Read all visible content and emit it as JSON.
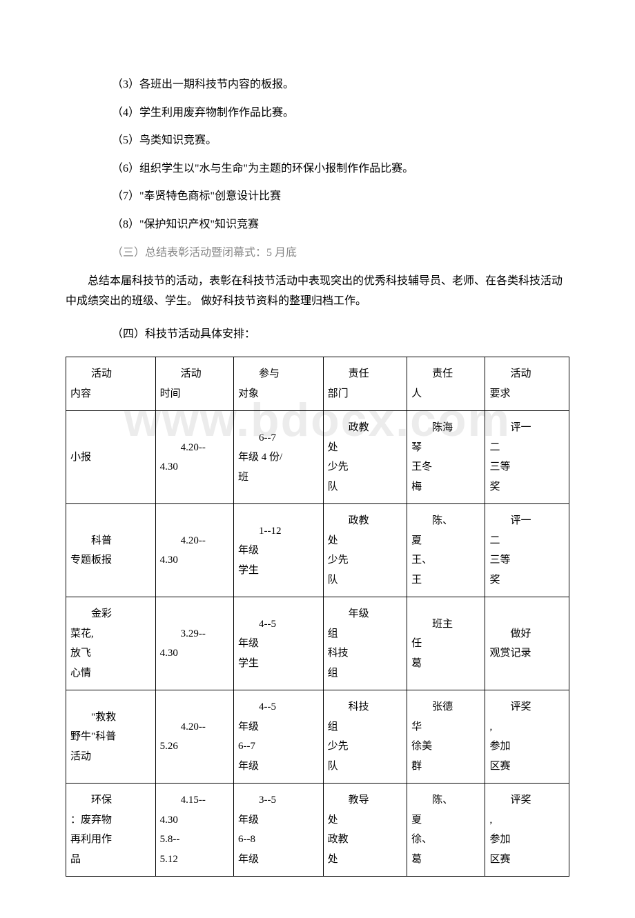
{
  "watermark": "www.bdocx.com",
  "list_items": [
    {
      "text": "（3）各班出一期科技节内容的板报。",
      "gray": false
    },
    {
      "text": "（4）学生利用废弃物制作作品比赛。",
      "gray": false
    },
    {
      "text": "（5）鸟类知识竞赛。",
      "gray": false
    },
    {
      "text": "（6）组织学生以\"水与生命\"为主题的环保小报制作作品比赛。",
      "gray": false
    },
    {
      "text": "（7）\"奉贤特色商标\"创意设计比赛",
      "gray": false
    },
    {
      "text": "（8）\"保护知识产权\"知识竞赛",
      "gray": false
    },
    {
      "text": "（三）总结表彰活动暨闭幕式：5 月底",
      "gray": true
    }
  ],
  "summary": "总结本届科技节的活动，表彰在科技节活动中表现突出的优秀科技辅导员、老师、在各类科技活动中成绩突出的班级、学生。 做好科技节资料的整理归档工作。",
  "section_heading": "（四）科技节活动具体安排：",
  "table": {
    "columns": [
      {
        "header_l1": "活动",
        "header_l2": "内容",
        "width": "16%"
      },
      {
        "header_l1": "活动",
        "header_l2": "时间",
        "width": "14%"
      },
      {
        "header_l1": "参与",
        "header_l2": "对象",
        "width": "16%"
      },
      {
        "header_l1": "责任",
        "header_l2": "部门",
        "width": "15%"
      },
      {
        "header_l1": "责任",
        "header_l2": "人",
        "width": "14%"
      },
      {
        "header_l1": "活动",
        "header_l2": "要求",
        "width": "15%"
      }
    ],
    "rows": [
      {
        "cells": [
          {
            "l1": "",
            "l2": "小报"
          },
          {
            "l1": "4.20--",
            "l2": "4.30",
            "align": "left"
          },
          {
            "l1": "6--7",
            "l2": "年级 4 份/",
            "l3": "班"
          },
          {
            "l1": "政教",
            "l2": "处",
            "l3": "少先",
            "l4": "队"
          },
          {
            "l1": "陈海",
            "l2": "琴",
            "l3": "王冬",
            "l4": "梅"
          },
          {
            "l1": "评一",
            "l2": "二",
            "l3": "三等",
            "l4": "奖"
          }
        ]
      },
      {
        "cells": [
          {
            "l1": "科普",
            "l2": "专题板报"
          },
          {
            "l1": "4.20--",
            "l2": "4.30"
          },
          {
            "l1": "1--12",
            "l2": "年级",
            "l3": "学生"
          },
          {
            "l1": "政教",
            "l2": "处",
            "l3": "少先",
            "l4": "队"
          },
          {
            "l1": "陈、",
            "l2": "夏",
            "l3": "王、",
            "l4": "王"
          },
          {
            "l1": "评一",
            "l2": "二",
            "l3": "三等",
            "l4": "奖"
          }
        ]
      },
      {
        "cells": [
          {
            "l1": "金彩",
            "l2": "菜花,",
            "l3": "放飞",
            "l4": "心情"
          },
          {
            "l1": "3.29--",
            "l2": "4.30"
          },
          {
            "l1": "4--5",
            "l2": "年级",
            "l3": "学生"
          },
          {
            "l1": "年级",
            "l2": "组",
            "l3": "科技",
            "l4": "组"
          },
          {
            "l1": "班主",
            "l2": "任",
            "l3": "葛"
          },
          {
            "l1": "做好",
            "l2": "观赏记录"
          }
        ]
      },
      {
        "cells": [
          {
            "l1": "\"救救",
            "l2": "野牛\"科普",
            "l3": "活动"
          },
          {
            "l1": "4.20--",
            "l2": "5.26"
          },
          {
            "l1": "4--5",
            "l2": "年级",
            "l3": "6--7",
            "l4": "年级"
          },
          {
            "l1": "科技",
            "l2": "组",
            "l3": "少先",
            "l4": "队"
          },
          {
            "l1": "张德",
            "l2": "华",
            "l3": "徐美",
            "l4": "群"
          },
          {
            "l1": "评奖",
            "l2": ",",
            "l3": "参加",
            "l4": "区赛"
          }
        ]
      },
      {
        "cells": [
          {
            "l1": "环保",
            "l2": "：废弃物",
            "l3": "再利用作",
            "l4": "品"
          },
          {
            "l1": "4.15--",
            "l2": "4.30",
            "l3": "5.8--",
            "l4": "5.12"
          },
          {
            "l1": "3--5",
            "l2": "年级",
            "l3": "6--8",
            "l4": "年级"
          },
          {
            "l1": "教导",
            "l2": "处",
            "l3": "政教",
            "l4": "处"
          },
          {
            "l1": "陈、",
            "l2": "夏",
            "l3": "徐、",
            "l4": "葛"
          },
          {
            "l1": "评奖",
            "l2": ",",
            "l3": "参加",
            "l4": "区赛"
          }
        ]
      }
    ]
  }
}
